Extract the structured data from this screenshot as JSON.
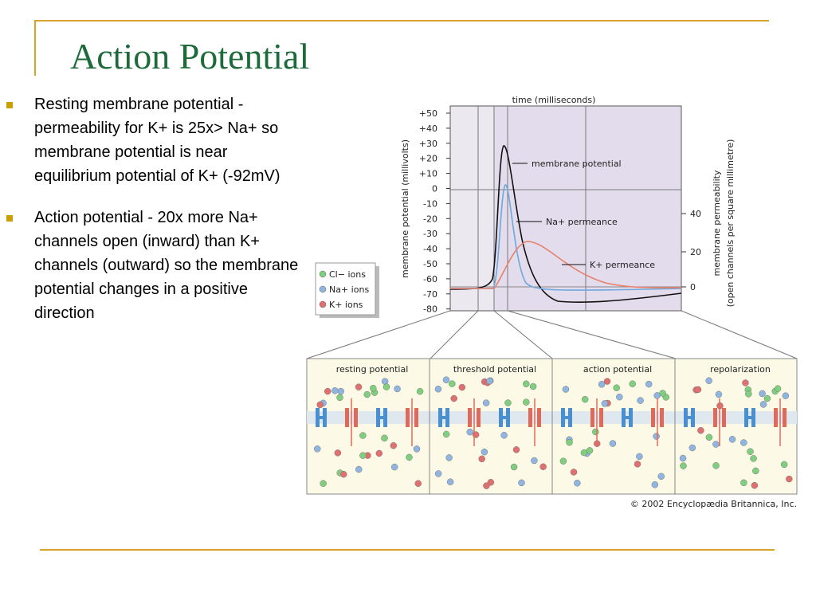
{
  "title": "Action Potential",
  "bullets": [
    "Resting membrane potential -  permeability for K+ is 25x> Na+ so membrane potential is near equilibrium potential of K+ (-92mV)",
    "Action potential - 20x more Na+ channels open (inward) than K+ channels (outward) so the membrane potential changes in a positive direction"
  ],
  "figure": {
    "top_label": "time (milliseconds)",
    "y_label": "membrane potential (millivolts)",
    "y2_label": [
      "membrane permeability",
      "(open channels per square millimetre)"
    ],
    "y_ticks": [
      "+50",
      "+40",
      "+30",
      "+20",
      "+10",
      "0",
      "-10",
      "-20",
      "-30",
      "-40",
      "-50",
      "-60",
      "-70",
      "-80"
    ],
    "y2_ticks": [
      "40",
      "20",
      "0"
    ],
    "annotations": [
      "membrane potential",
      "Na+ permeance",
      "K+ permeance"
    ],
    "legend": [
      "Cl− ions",
      "Na+ ions",
      "K+ ions"
    ],
    "panels": [
      "resting potential",
      "threshold potential",
      "action potential",
      "repolarization"
    ],
    "credit": "© 2002 Encyclopædia Britannica, Inc."
  }
}
